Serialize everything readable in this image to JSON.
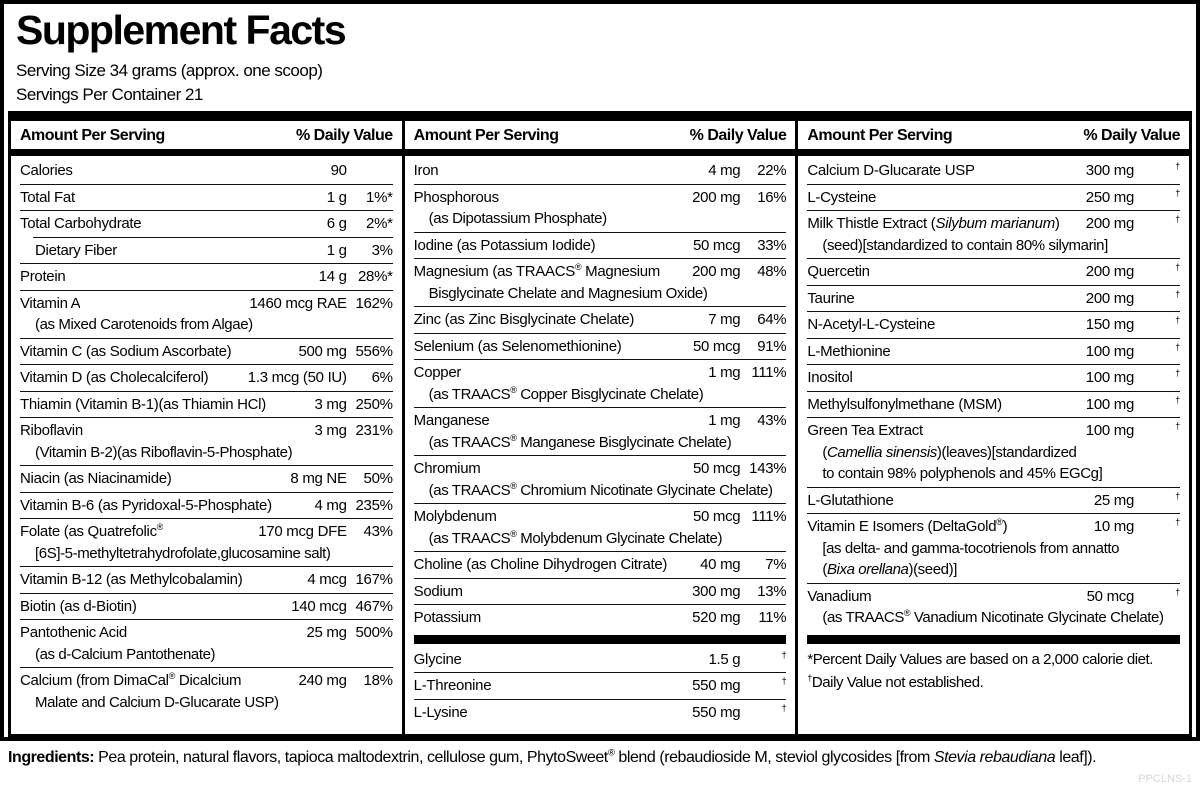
{
  "title": "Supplement Facts",
  "serving_size": "Serving Size 34 grams (approx. one scoop)",
  "servings_per_container": "Servings Per Container 21",
  "header": {
    "amount_label": "Amount Per Serving",
    "dv_label": "% Daily Value"
  },
  "columns": [
    {
      "rows": [
        {
          "name": "Calories",
          "amount": "90",
          "dv": ""
        },
        {
          "name": "Total Fat",
          "amount": "1 g",
          "dv": "1%*"
        },
        {
          "name": "Total Carbohydrate",
          "amount": "6 g",
          "dv": "2%*"
        },
        {
          "name": "Dietary Fiber",
          "amount": "1 g",
          "dv": "3%",
          "indent": true,
          "sep": "line-indent"
        },
        {
          "name": "Protein",
          "amount": "14 g",
          "dv": "28%*"
        },
        {
          "name": "Vitamin A",
          "amount": "1460 mcg RAE",
          "dv": "162%",
          "sub": [
            "(as Mixed Carotenoids from Algae)"
          ]
        },
        {
          "name": "Vitamin C (as Sodium Ascorbate)",
          "amount": "500 mg",
          "dv": "556%"
        },
        {
          "name": "Vitamin D (as Cholecalciferol)",
          "amount": "1.3 mcg (50 IU)",
          "dv": "6%"
        },
        {
          "name": "Thiamin (Vitamin B-1)(as Thiamin HCl)",
          "amount": "3 mg",
          "dv": "250%"
        },
        {
          "name": "Riboflavin",
          "amount": "3 mg",
          "dv": "231%",
          "sub": [
            "(Vitamin B-2)(as Riboflavin-5-Phosphate)"
          ]
        },
        {
          "name": "Niacin (as Niacinamide)",
          "amount": "8 mg NE",
          "dv": "50%"
        },
        {
          "name": "Vitamin B-6 (as Pyridoxal-5-Phosphate)",
          "amount": "4 mg",
          "dv": "235%"
        },
        {
          "name": "Folate (as Quatrefolic®",
          "amount": "170 mcg DFE",
          "dv": "43%",
          "sub": [
            "[6S]-5-methyltetrahydrofolate,glucosamine salt)"
          ]
        },
        {
          "name": "Vitamin B-12 (as Methylcobalamin)",
          "amount": "4 mcg",
          "dv": "167%"
        },
        {
          "name": "Biotin (as d-Biotin)",
          "amount": "140 mcg",
          "dv": "467%"
        },
        {
          "name": "Pantothenic Acid",
          "amount": "25 mg",
          "dv": "500%",
          "sub": [
            "(as d-Calcium Pantothenate)"
          ]
        },
        {
          "name": "Calcium (from DimaCal® Dicalcium",
          "amount": "240 mg",
          "dv": "18%",
          "sub": [
            "Malate and Calcium D-Glucarate USP)"
          ]
        }
      ]
    },
    {
      "rows": [
        {
          "name": "Iron",
          "amount": "4 mg",
          "dv": "22%"
        },
        {
          "name": "Phosphorous",
          "amount": "200 mg",
          "dv": "16%",
          "sub": [
            "(as Dipotassium Phosphate)"
          ]
        },
        {
          "name": "Iodine (as Potassium Iodide)",
          "amount": "50 mcg",
          "dv": "33%"
        },
        {
          "name": "Magnesium (as TRAACS® Magnesium",
          "amount": "200 mg",
          "dv": "48%",
          "sub": [
            "Bisglycinate Chelate and Magnesium Oxide)"
          ]
        },
        {
          "name": "Zinc (as Zinc Bisglycinate Chelate)",
          "amount": "7 mg",
          "dv": "64%"
        },
        {
          "name": "Selenium (as Selenomethionine)",
          "amount": "50 mcg",
          "dv": "91%"
        },
        {
          "name": "Copper",
          "amount": "1 mg",
          "dv": "111%",
          "sub": [
            "(as TRAACS® Copper Bisglycinate Chelate)"
          ]
        },
        {
          "name": "Manganese",
          "amount": "1 mg",
          "dv": "43%",
          "sub": [
            "(as TRAACS® Manganese Bisglycinate Chelate)"
          ]
        },
        {
          "name": "Chromium",
          "amount": "50 mcg",
          "dv": "143%",
          "sub": [
            "(as TRAACS® Chromium Nicotinate Glycinate Chelate)"
          ]
        },
        {
          "name": "Molybdenum",
          "amount": "50 mcg",
          "dv": "111%",
          "sub": [
            "(as TRAACS® Molybdenum Glycinate Chelate)"
          ]
        },
        {
          "name": "Choline (as Choline Dihydrogen Citrate)",
          "amount": "40 mg",
          "dv": "7%"
        },
        {
          "name": "Sodium",
          "amount": "300 mg",
          "dv": "13%"
        },
        {
          "name": "Potassium",
          "amount": "520 mg",
          "dv": "11%"
        },
        {
          "name": "Glycine",
          "amount": "1.5 g",
          "dv": "†",
          "sep": "thick"
        },
        {
          "name": "L-Threonine",
          "amount": "550 mg",
          "dv": "†"
        },
        {
          "name": "L-Lysine",
          "amount": "550 mg",
          "dv": "†"
        }
      ]
    },
    {
      "rows": [
        {
          "name": "Calcium D-Glucarate USP",
          "amount": "300 mg",
          "dv": "†"
        },
        {
          "name": "L-Cysteine",
          "amount": "250 mg",
          "dv": "†"
        },
        {
          "name": "Milk Thistle Extract (_Silybum marianum_)",
          "amount": "200 mg",
          "dv": "†",
          "sub": [
            "(seed)[standardized to contain 80% silymarin]"
          ]
        },
        {
          "name": "Quercetin",
          "amount": "200 mg",
          "dv": "†"
        },
        {
          "name": "Taurine",
          "amount": "200 mg",
          "dv": "†"
        },
        {
          "name": "N-Acetyl-L-Cysteine",
          "amount": "150 mg",
          "dv": "†"
        },
        {
          "name": "L-Methionine",
          "amount": "100 mg",
          "dv": "†"
        },
        {
          "name": "Inositol",
          "amount": "100 mg",
          "dv": "†"
        },
        {
          "name": "Methylsulfonylmethane (MSM)",
          "amount": "100 mg",
          "dv": "†"
        },
        {
          "name": "Green Tea Extract",
          "amount": "100 mg",
          "dv": "†",
          "sub": [
            "(_Camellia sinensis_)(leaves)[standardized",
            "to contain 98% polyphenols and 45% EGCg]"
          ]
        },
        {
          "name": "L-Glutathione",
          "amount": "25 mg",
          "dv": "†"
        },
        {
          "name": "Vitamin E Isomers (DeltaGold®)",
          "amount": "10 mg",
          "dv": "†",
          "sub": [
            "[as delta- and gamma-tocotrienols from annatto",
            "(_Bixa orellana_)(seed)]"
          ]
        },
        {
          "name": "Vanadium",
          "amount": "50 mcg",
          "dv": "†",
          "sub": [
            "(as TRAACS® Vanadium Nicotinate Glycinate Chelate)"
          ]
        }
      ],
      "footnotes": [
        "*Percent Daily Values are based on a 2,000 calorie diet.",
        "†Daily Value not established."
      ]
    }
  ],
  "ingredients": {
    "label": "Ingredients:",
    "text": " Pea protein, natural flavors, tapioca maltodextrin, cellulose gum, PhytoSweet® blend (rebaudioside M, steviol glycosides [from _Stevia rebaudiana_ leaf])."
  },
  "product_code": "PPCLNS-1",
  "colors": {
    "ink": "#000000",
    "code_gray": "#d7d7d7"
  }
}
